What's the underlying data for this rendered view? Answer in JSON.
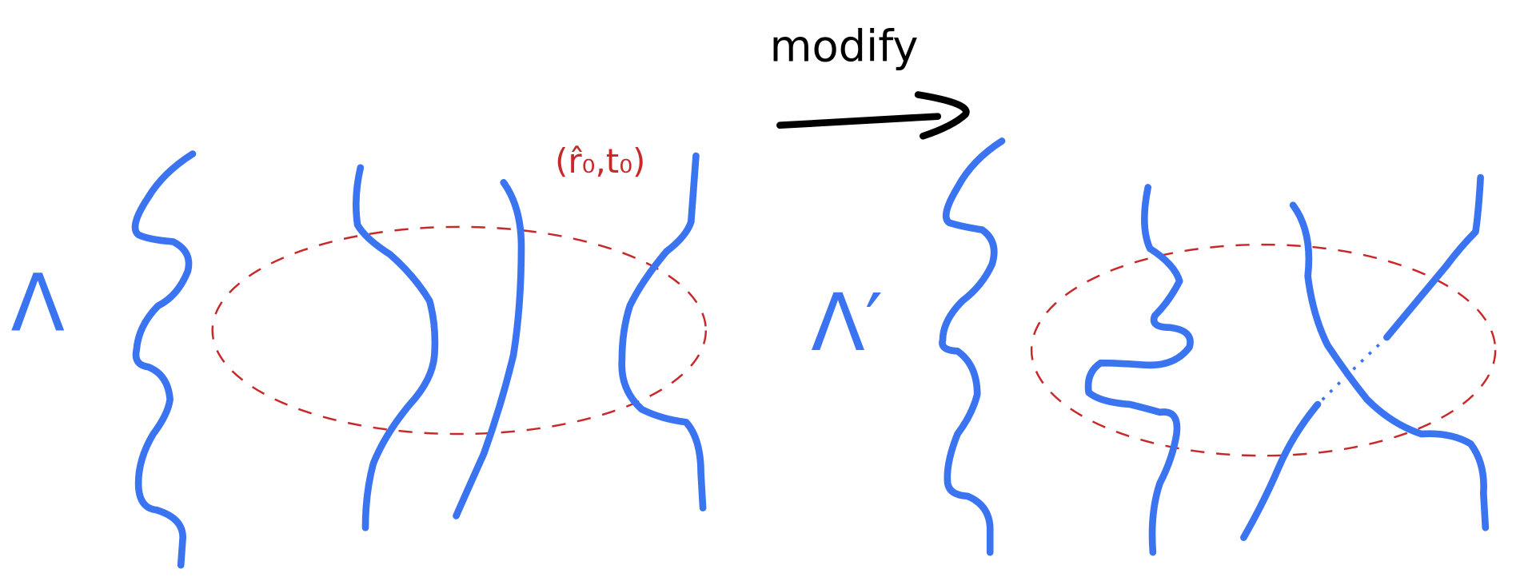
{
  "labels": {
    "action": "modify",
    "left_symbol": "Λ",
    "right_symbol": "Λ′",
    "point": "(r̂₀,t₀)"
  }
}
